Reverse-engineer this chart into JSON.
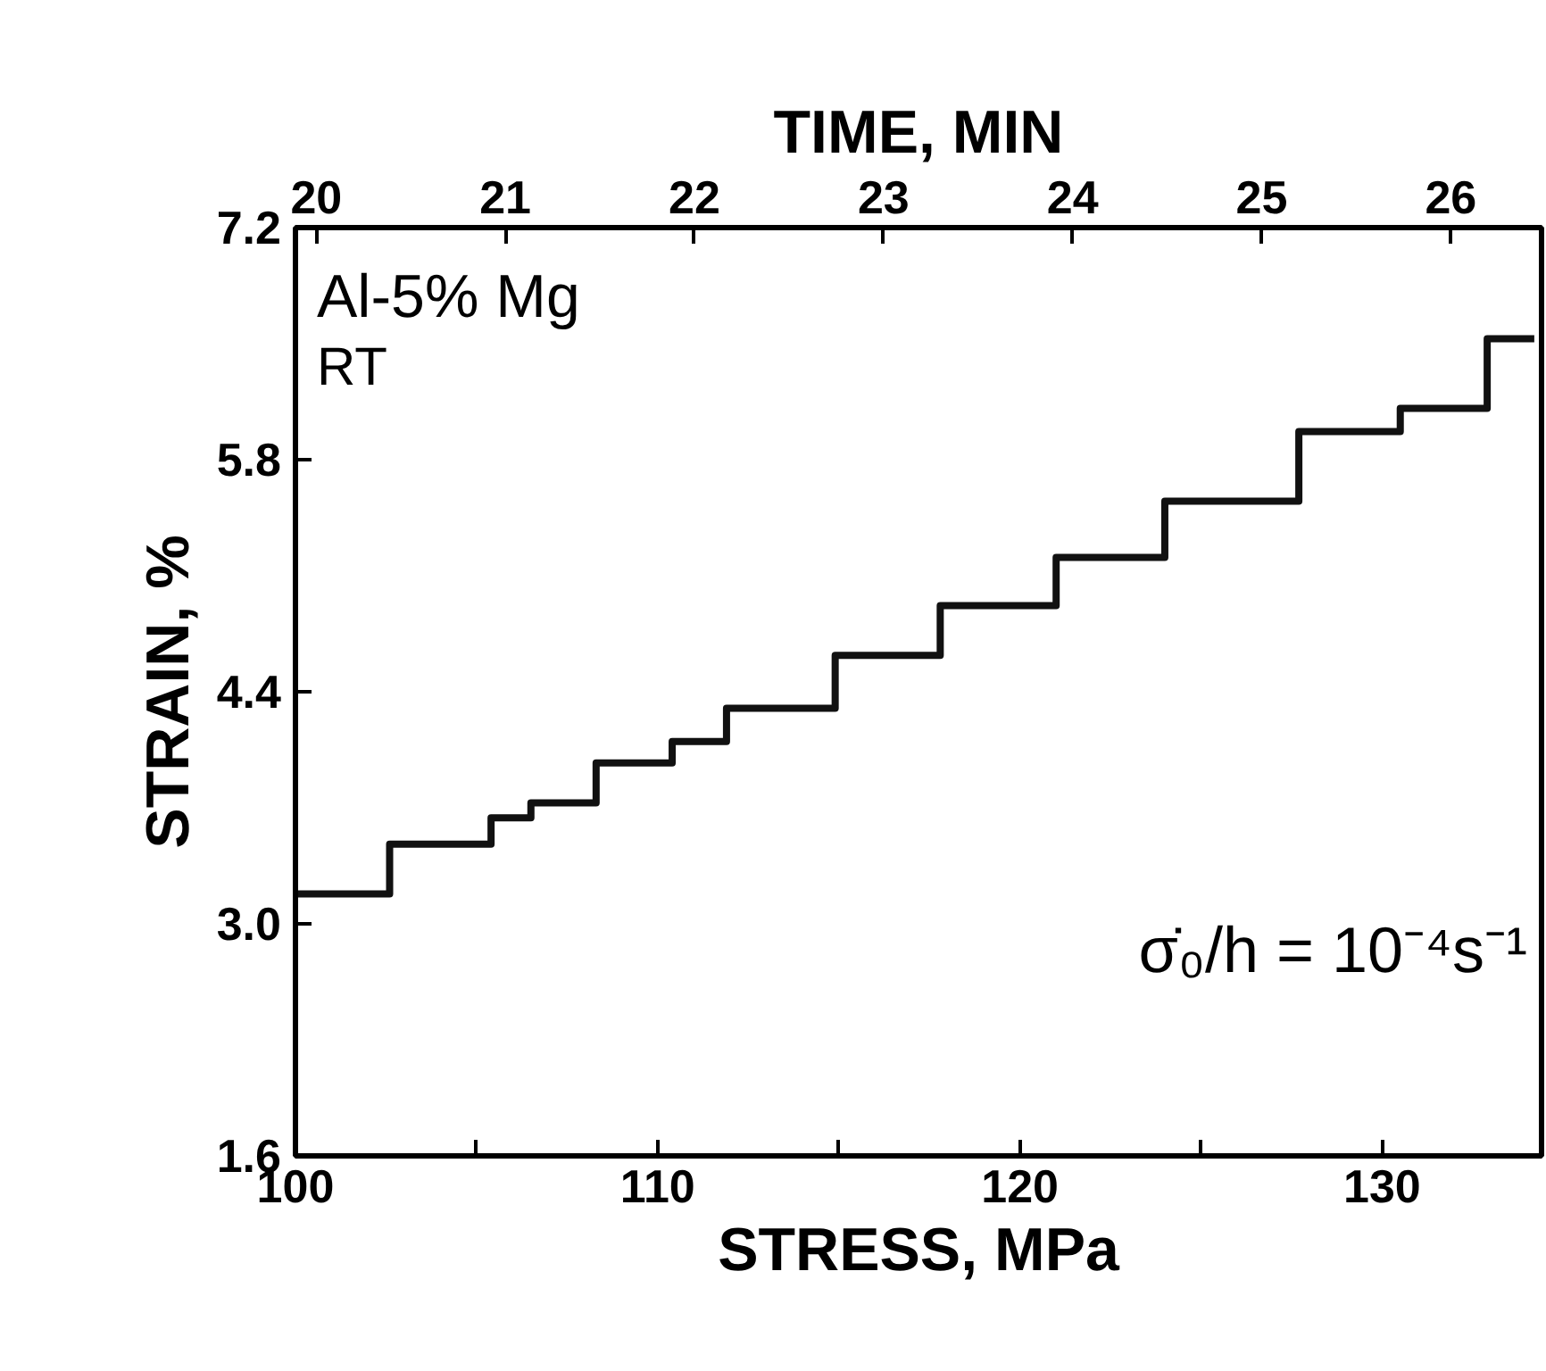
{
  "chart_data": {
    "type": "step",
    "xlabel": "STRESS, MPa",
    "ylabel": "STRAIN, %",
    "x2label": "TIME, MIN",
    "x": [
      100.0,
      102.6,
      105.4,
      106.5,
      108.3,
      110.4,
      111.9,
      114.9,
      117.8,
      121.0,
      124.0,
      127.7,
      130.5,
      132.9,
      134.2
    ],
    "series": [
      {
        "color": "#111111",
        "values": [
          3.18,
          3.48,
          3.64,
          3.73,
          3.97,
          4.1,
          4.3,
          4.62,
          4.92,
          5.21,
          5.55,
          5.97,
          6.11,
          6.53,
          6.53
        ]
      }
    ],
    "xlim": [
      100,
      134.4
    ],
    "ylim": [
      1.6,
      7.2
    ],
    "xticks": [
      100,
      {
        "value": 105,
        "label": null
      },
      110,
      {
        "value": 115,
        "label": null
      },
      120,
      {
        "value": 125,
        "label": null
      },
      130
    ],
    "yticks": [
      1.6,
      {
        "value": 3,
        "label": "3.0"
      },
      4.4,
      5.8,
      7.2
    ],
    "x2lim": [
      19.89,
      26.48
    ],
    "x2ticks": [
      20,
      21,
      22,
      23,
      24,
      25,
      26
    ],
    "annotations": [
      "Al-5% Mg",
      "RT",
      "σ̇₀/h = 10⁻⁴s⁻¹"
    ],
    "grid": false,
    "line_style": "solid",
    "marker": "none"
  }
}
